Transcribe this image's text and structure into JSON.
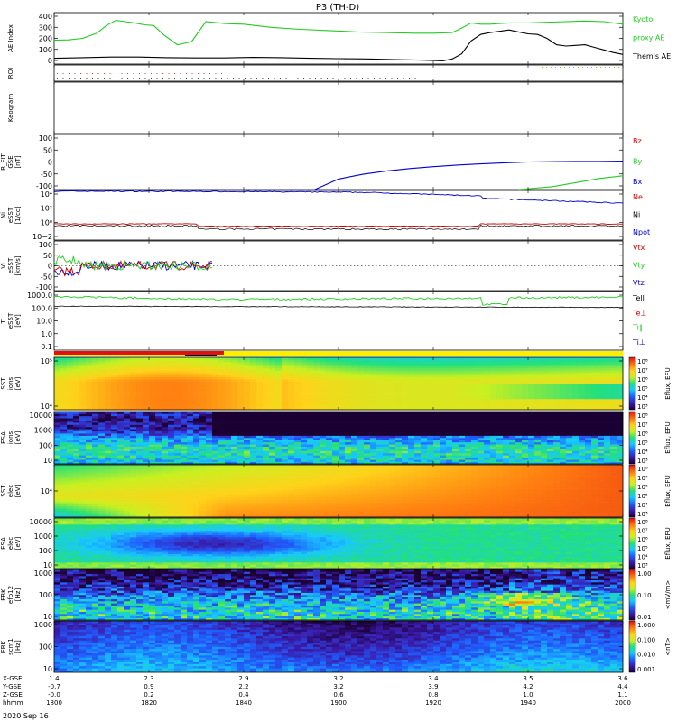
{
  "chart_data": {
    "type": "line",
    "title": "P3 (TH-D)",
    "date": "2020 Sep 16",
    "panels": [
      {
        "ylabel": [
          "AE Index"
        ],
        "ylim": [
          0,
          400
        ],
        "yticks": [
          "0",
          "100",
          "200",
          "300",
          "400"
        ],
        "legend": [
          {
            "text": "Kyoto",
            "color": "#22cc22"
          },
          {
            "text": "proxy AE",
            "color": "#22cc22"
          },
          {
            "text": "Themis AE",
            "color": "#000000"
          }
        ],
        "series": [
          {
            "name": "Kyoto proxy AE",
            "color": "#22cc22",
            "x": [
              1800,
              1803,
              1806,
              1809,
              1811,
              1813,
              1815,
              1817,
              1819,
              1821,
              1823,
              1826,
              1829,
              1832,
              1836,
              1840,
              1846,
              1852,
              1858,
              1904,
              1910,
              1916,
              1920,
              1924,
              1926,
              1928,
              1930,
              1932,
              1934,
              1936,
              1938,
              1940,
              1944,
              1948,
              1952,
              1956,
              2000
            ],
            "y": [
              185,
              188,
              200,
              240,
              300,
              340,
              330,
              320,
              305,
              300,
              230,
              150,
              175,
              330,
              315,
              310,
              285,
              270,
              260,
              250,
              245,
              240,
              240,
              245,
              280,
              320,
              310,
              310,
              315,
              320,
              320,
              320,
              325,
              330,
              335,
              330,
              310
            ]
          },
          {
            "name": "Themis AE",
            "color": "#000000",
            "x": [
              1800,
              1806,
              1812,
              1818,
              1824,
              1830,
              1836,
              1842,
              1848,
              1854,
              1900,
              1906,
              1912,
              1918,
              1922,
              1924,
              1926,
              1928,
              1930,
              1932,
              1934,
              1936,
              1938,
              1940,
              1942,
              1944,
              1946,
              1948,
              1950,
              1952,
              1954,
              1956,
              1958,
              2000
            ],
            "y": [
              45,
              50,
              55,
              55,
              50,
              48,
              48,
              52,
              50,
              45,
              42,
              40,
              35,
              30,
              25,
              40,
              80,
              180,
              230,
              245,
              255,
              265,
              250,
              235,
              230,
              200,
              150,
              140,
              145,
              150,
              130,
              110,
              90,
              75
            ]
          }
        ]
      },
      {
        "ylabel": [
          "ROI"
        ],
        "ylim": null,
        "yticks": [],
        "legend": [],
        "series": []
      },
      {
        "ylabel": [
          "Keogram"
        ],
        "ylim": null,
        "yticks": [],
        "legend": [],
        "series": []
      },
      {
        "ylabel": [
          "B_FIT",
          "GSE",
          "[nT]"
        ],
        "ylim": [
          -100,
          100
        ],
        "yticks": [
          "-100",
          "-50",
          "0",
          "50",
          "100"
        ],
        "legend": [
          {
            "text": "Bz",
            "color": "#cc0000"
          },
          {
            "text": "By",
            "color": "#22cc22"
          },
          {
            "text": "Bx",
            "color": "#0000cc"
          }
        ],
        "series": [
          {
            "name": "Bx",
            "color": "#0000cc",
            "x": [
              1855,
              1900,
              1905,
              1910,
              1915,
              1920,
              1925,
              1930,
              1935,
              1940,
              1945,
              1950,
              1955,
              2000
            ],
            "y": [
              -100,
              -62,
              -45,
              -33,
              -24,
              -17,
              -11,
              -7,
              -3,
              0,
              1,
              2,
              2,
              3
            ]
          },
          {
            "name": "By",
            "color": "#22cc22",
            "x": [
              1938,
              1945,
              1950,
              1955,
              2000
            ],
            "y": [
              -100,
              -90,
              -75,
              -60,
              -50
            ]
          }
        ]
      },
      {
        "ylabel": [
          "Ni",
          "eSST",
          "[1/cc]"
        ],
        "ylim": null,
        "yticks": [
          "10−2",
          "10⁰",
          "10²",
          "10⁴"
        ],
        "legend": [
          {
            "text": "Ne",
            "color": "#cc0000"
          },
          {
            "text": "Ni",
            "color": "#000000"
          },
          {
            "text": "Npot",
            "color": "#0000cc"
          }
        ],
        "series": []
      },
      {
        "ylabel": [
          "Vi",
          "eSST",
          "[km/s]"
        ],
        "ylim": [
          -100,
          100
        ],
        "yticks": [
          "-100",
          "-50",
          "0",
          "50",
          "100"
        ],
        "legend": [
          {
            "text": "Vtx",
            "color": "#cc0000"
          },
          {
            "text": "Vty",
            "color": "#22cc22"
          },
          {
            "text": "Vtz",
            "color": "#0000cc"
          }
        ],
        "series": []
      },
      {
        "ylabel": [
          "Ti",
          "eSST",
          "[eV]"
        ],
        "ylim": null,
        "yticks": [
          "0.1",
          "1.0",
          "10.0",
          "100.0",
          "1000.0"
        ],
        "legend": [
          {
            "text": "Tell",
            "color": "#000000"
          },
          {
            "text": "Te⊥",
            "color": "#cc0000"
          },
          {
            "text": "Ti∥",
            "color": "#22cc22"
          },
          {
            "text": "Ti⊥",
            "color": "#0000cc"
          }
        ],
        "series": []
      },
      {
        "ylabel": [
          "SST",
          "ions",
          "[eV]"
        ],
        "ylim": null,
        "yticks": [
          "10⁴",
          "10⁵"
        ],
        "legend": [],
        "series": []
      },
      {
        "ylabel": [
          "ESA",
          "ions",
          "[eV]"
        ],
        "ylim": null,
        "yticks": [
          "10",
          "100",
          "1000",
          "10000"
        ],
        "legend": [],
        "series": []
      },
      {
        "ylabel": [
          "SST",
          "elec",
          "[eV]"
        ],
        "ylim": null,
        "yticks": [
          "10⁴"
        ],
        "legend": [],
        "series": []
      },
      {
        "ylabel": [
          "ESA",
          "elec",
          "[eV]"
        ],
        "ylim": null,
        "yticks": [
          "10",
          "100",
          "1000",
          "10000"
        ],
        "legend": [],
        "series": []
      },
      {
        "ylabel": [
          "FBK",
          "efp12",
          "[Hz]"
        ],
        "ylim": null,
        "yticks": [
          "10",
          "100",
          "1000"
        ],
        "legend": [],
        "series": []
      },
      {
        "ylabel": [
          "FBK",
          "scm1",
          "[Hz]"
        ],
        "ylim": null,
        "yticks": [
          "10",
          "100",
          "1000"
        ],
        "legend": [],
        "series": []
      }
    ],
    "colorbars": [
      {
        "label": "Eflux, EFU",
        "ticks": [
          "10³",
          "10⁴",
          "10⁵",
          "10⁶",
          "10⁷",
          "10⁸"
        ]
      },
      {
        "label": "Eflux, EFU",
        "ticks": [
          "10³",
          "10⁴",
          "10⁵",
          "10⁶",
          "10⁷",
          "10⁸"
        ]
      },
      {
        "label": "Eflux, EFU",
        "ticks": [
          "10³",
          "10⁴",
          "10⁵",
          "10⁶",
          "10⁷",
          "10⁸"
        ]
      },
      {
        "label": "Eflux, EFU",
        "ticks": [
          "10³",
          "10⁴",
          "10⁵",
          "10⁶",
          "10⁷",
          "10⁸"
        ]
      },
      {
        "label": "<mV/m>",
        "ticks": [
          "0.01",
          "0.10",
          "1.00"
        ]
      },
      {
        "label": "<nT>",
        "ticks": [
          "0.001",
          "0.010",
          "0.100",
          "1.000"
        ]
      }
    ],
    "xaxis": {
      "rows": [
        {
          "label": "X-GSE",
          "values": [
            "1.4",
            "2.3",
            "2.9",
            "3.2",
            "3.4",
            "3.5",
            "3.6"
          ]
        },
        {
          "label": "Y-GSE",
          "values": [
            "-0.7",
            "0.9",
            "2.2",
            "3.2",
            "3.9",
            "4.2",
            "4.4"
          ]
        },
        {
          "label": "Z-GSE",
          "values": [
            "-0.0",
            "0.2",
            "0.4",
            "0.6",
            "0.8",
            "1.0",
            "1.1"
          ]
        },
        {
          "label": "hhmm",
          "values": [
            "1800",
            "1820",
            "1840",
            "1900",
            "1920",
            "1940",
            "2000"
          ]
        }
      ]
    }
  }
}
